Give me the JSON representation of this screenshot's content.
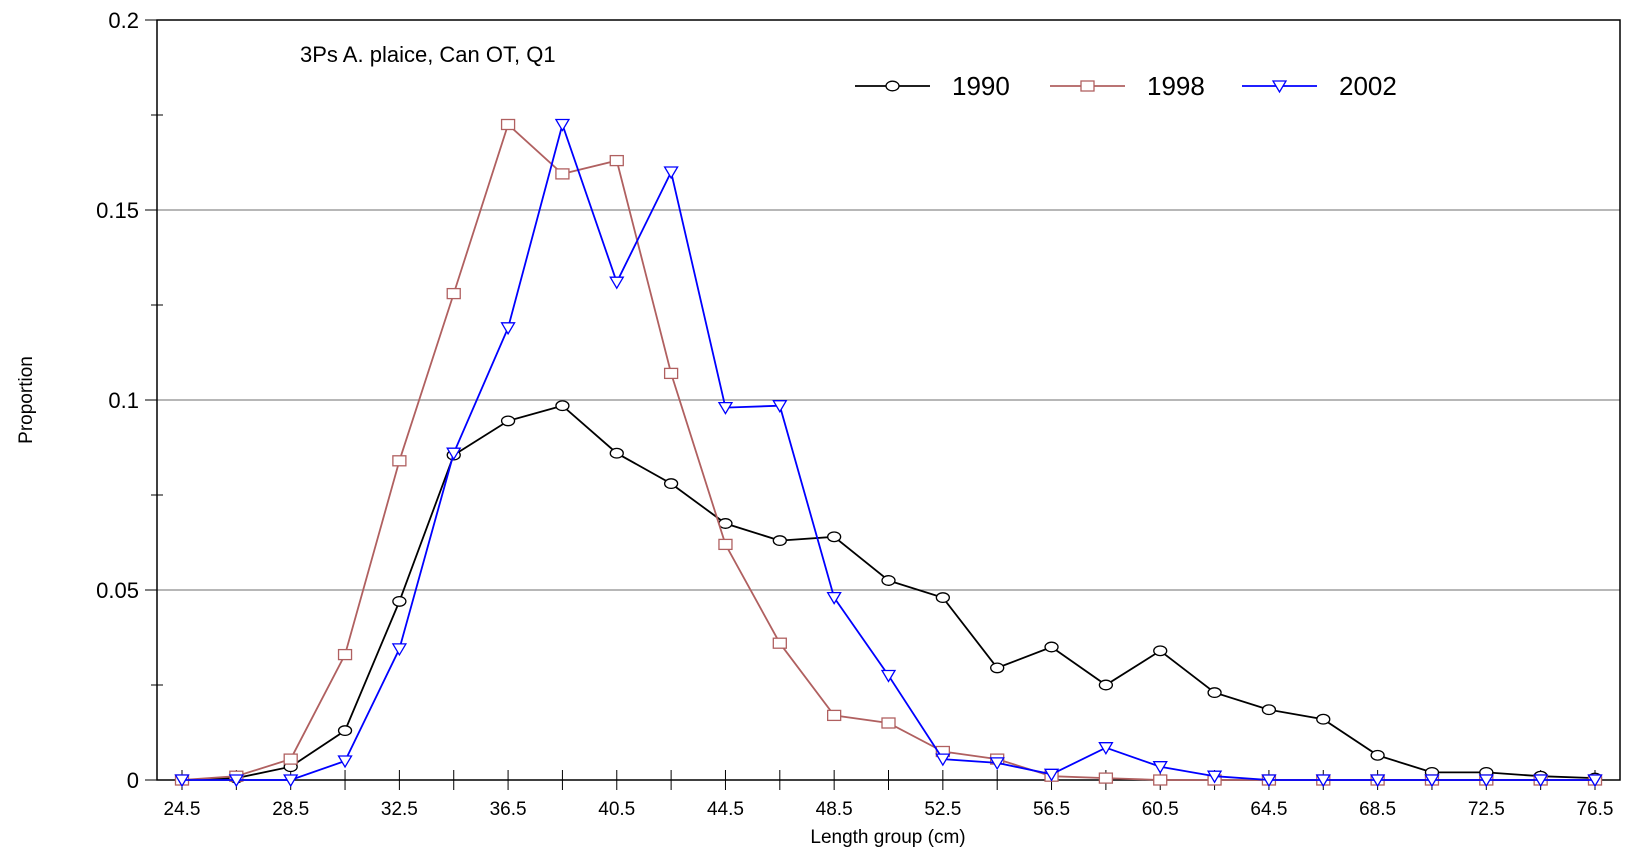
{
  "chart_data": {
    "type": "line",
    "title": "3Ps A. plaice, Can OT, Q1",
    "xlabel": "Length group (cm)",
    "ylabel": "Proportion",
    "ylim": [
      0,
      0.2
    ],
    "xlim": [
      24.5,
      76.5
    ],
    "y_ticks": [
      "0",
      "0.05",
      "0.1",
      "0.15",
      "0.2"
    ],
    "x_tick_labels": [
      "24.5",
      "28.5",
      "32.5",
      "36.5",
      "40.5",
      "44.5",
      "48.5",
      "52.5",
      "56.5",
      "60.5",
      "64.5",
      "68.5",
      "72.5",
      "76.5"
    ],
    "grid": "horizontal",
    "legend_position": "top-right",
    "x": [
      24.5,
      26.5,
      28.5,
      30.5,
      32.5,
      34.5,
      36.5,
      38.5,
      40.5,
      42.5,
      44.5,
      46.5,
      48.5,
      50.5,
      52.5,
      54.5,
      56.5,
      58.5,
      60.5,
      62.5,
      64.5,
      66.5,
      68.5,
      70.5,
      72.5,
      74.5,
      76.5
    ],
    "series": [
      {
        "name": "1990",
        "color": "#000000",
        "marker": "circle",
        "values": [
          0,
          0.0005,
          0.0035,
          0.013,
          0.047,
          0.0855,
          0.0945,
          0.0985,
          0.086,
          0.078,
          0.0675,
          0.063,
          0.064,
          0.0525,
          0.048,
          0.0295,
          0.035,
          0.025,
          0.034,
          0.023,
          0.0185,
          0.016,
          0.0065,
          0.002,
          0.002,
          0.001,
          0.0005
        ]
      },
      {
        "name": "1998",
        "color": "#b06060",
        "marker": "square",
        "values": [
          0,
          0.001,
          0.0055,
          0.033,
          0.084,
          0.128,
          0.1725,
          0.1595,
          0.163,
          0.107,
          0.062,
          0.036,
          0.017,
          0.015,
          0.0075,
          0.0055,
          0.001,
          0.0005,
          0,
          0,
          0,
          0,
          0,
          0,
          0,
          0,
          0
        ]
      },
      {
        "name": "2002",
        "color": "#0000ff",
        "marker": "triangle-down",
        "values": [
          0,
          0,
          0,
          0.005,
          0.0345,
          0.086,
          0.119,
          0.1725,
          0.131,
          0.16,
          0.098,
          0.0985,
          0.048,
          0.0275,
          0.0055,
          0.0045,
          0.0015,
          0.0085,
          0.0035,
          0.001,
          0,
          0,
          0,
          0,
          0,
          0,
          0
        ]
      }
    ]
  }
}
